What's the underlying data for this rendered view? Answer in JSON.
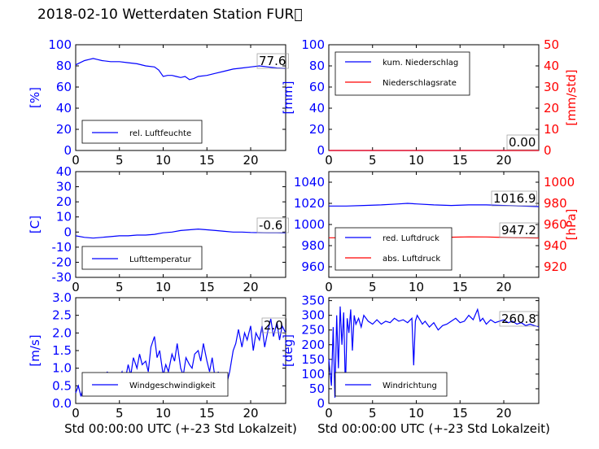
{
  "title": "2018-02-10 Wetterdaten Station FUR\u0000",
  "xlabel": "Std 00:00:00 UTC (+-23 Std Lokalzeit)",
  "colors": {
    "blue": "#0000ff",
    "red": "#ff0000",
    "black": "#000000"
  },
  "chart_data": [
    {
      "type": "line",
      "id": "humidity",
      "ylabel": "[%]",
      "xlim": [
        0,
        24
      ],
      "xticks": [
        0,
        5,
        10,
        15,
        20
      ],
      "ylim": [
        0,
        100
      ],
      "yticks": [
        0,
        20,
        40,
        60,
        80,
        100
      ],
      "value_label": "77.6",
      "legend": [
        "rel. Luftfeuchte"
      ],
      "series": [
        {
          "name": "rel. Luftfeuchte",
          "color": "#0000ff",
          "axis": "left",
          "x": [
            0,
            0.5,
            1,
            1.5,
            2,
            2.5,
            3,
            4,
            5,
            6,
            7,
            8,
            9,
            9.5,
            10,
            10.5,
            11,
            11.5,
            12,
            12.5,
            13,
            13.5,
            14,
            15,
            16,
            17,
            18,
            19,
            20,
            21,
            22,
            23,
            24
          ],
          "y": [
            81,
            83,
            85,
            86,
            87,
            86,
            85,
            84,
            84,
            83,
            82,
            80,
            79,
            76,
            70,
            71,
            71,
            70,
            69,
            70,
            67,
            68,
            70,
            71,
            73,
            75,
            77,
            78,
            79,
            80,
            79,
            78,
            77.6
          ]
        }
      ]
    },
    {
      "type": "line",
      "id": "precipitation",
      "ylabel": "[mm]",
      "ylabel_right": "[mm/std]",
      "xlim": [
        0,
        24
      ],
      "xticks": [
        0,
        5,
        10,
        15,
        20
      ],
      "ylim": [
        0,
        100
      ],
      "yticks": [
        0,
        20,
        40,
        60,
        80,
        100
      ],
      "ylim_right": [
        0,
        50
      ],
      "yticks_right": [
        0,
        10,
        20,
        30,
        40,
        50
      ],
      "value_label": "0.00",
      "legend": [
        "kum. Niederschlag",
        "Niederschlagsrate"
      ],
      "series": [
        {
          "name": "kum. Niederschlag",
          "color": "#0000ff",
          "axis": "left",
          "x": [
            0,
            24
          ],
          "y": [
            0,
            0
          ]
        },
        {
          "name": "Niederschlagsrate",
          "color": "#ff0000",
          "axis": "right",
          "x": [
            0,
            24
          ],
          "y": [
            0,
            0
          ]
        }
      ]
    },
    {
      "type": "line",
      "id": "temperature",
      "ylabel": "[C]",
      "xlim": [
        0,
        24
      ],
      "xticks": [
        0,
        5,
        10,
        15,
        20
      ],
      "ylim": [
        -30,
        40
      ],
      "yticks": [
        -30,
        -20,
        -10,
        0,
        10,
        20,
        30,
        40
      ],
      "value_label": "-0.6",
      "legend": [
        "Lufttemperatur"
      ],
      "series": [
        {
          "name": "Lufttemperatur",
          "color": "#0000ff",
          "axis": "left",
          "x": [
            0,
            1,
            2,
            3,
            4,
            5,
            6,
            7,
            8,
            9,
            10,
            11,
            12,
            13,
            14,
            15,
            16,
            17,
            18,
            19,
            20,
            21,
            22,
            23,
            24
          ],
          "y": [
            -2.5,
            -3.5,
            -4,
            -3.5,
            -3,
            -2.5,
            -2.5,
            -2,
            -2,
            -1.5,
            -0.5,
            0,
            1,
            1.5,
            2,
            1.5,
            1,
            0.5,
            0,
            0,
            -0.3,
            -0.4,
            -0.5,
            -0.5,
            -0.6
          ]
        }
      ]
    },
    {
      "type": "line",
      "id": "pressure",
      "ylabel_right": "[hPa]",
      "xlim": [
        0,
        24
      ],
      "xticks": [
        0,
        5,
        10,
        15,
        20
      ],
      "ylim": [
        950,
        1050
      ],
      "yticks": [
        960,
        980,
        1000,
        1020,
        1040
      ],
      "ylim_right": [
        910,
        1010
      ],
      "yticks_right": [
        920,
        940,
        960,
        980,
        1000
      ],
      "value_label": "1016.9",
      "value_label_2": "947.2",
      "legend": [
        "red. Luftdruck",
        "abs. Luftdruck"
      ],
      "series": [
        {
          "name": "red. Luftdruck",
          "color": "#0000ff",
          "axis": "left",
          "x": [
            0,
            2,
            4,
            6,
            8,
            9,
            10,
            12,
            14,
            16,
            18,
            20,
            22,
            24
          ],
          "y": [
            1017.5,
            1017.5,
            1018,
            1018.5,
            1019.5,
            1020,
            1019.5,
            1018.5,
            1018,
            1018.5,
            1018.5,
            1018,
            1017.5,
            1016.9
          ]
        },
        {
          "name": "abs. Luftdruck",
          "color": "#ff0000",
          "axis": "right",
          "x": [
            0,
            2,
            4,
            6,
            8,
            9,
            10,
            12,
            14,
            16,
            18,
            20,
            22,
            24
          ],
          "y": [
            947.5,
            947.5,
            948,
            948.5,
            949.3,
            949.7,
            949.3,
            948.5,
            948,
            948.3,
            948.2,
            947.8,
            947.5,
            947.2
          ]
        }
      ]
    },
    {
      "type": "line",
      "id": "windspeed",
      "ylabel": "[m/s]",
      "xlim": [
        0,
        24
      ],
      "xticks": [
        0,
        5,
        10,
        15,
        20
      ],
      "ylim": [
        0,
        3
      ],
      "yticks": [
        0.0,
        0.5,
        1.0,
        1.5,
        2.0,
        2.5,
        3.0
      ],
      "value_label": "2.0",
      "legend": [
        "Windgeschwindigkeit"
      ],
      "series": [
        {
          "name": "Windgeschwindigkeit",
          "color": "#0000ff",
          "axis": "left",
          "x": [
            0,
            0.3,
            0.6,
            1,
            1.3,
            1.6,
            2,
            2.3,
            2.6,
            3,
            3.3,
            3.6,
            4,
            4.3,
            4.6,
            5,
            5.3,
            5.6,
            6,
            6.3,
            6.6,
            7,
            7.3,
            7.6,
            8,
            8.3,
            8.6,
            9,
            9.3,
            9.6,
            10,
            10.3,
            10.6,
            11,
            11.3,
            11.6,
            12,
            12.3,
            12.6,
            13,
            13.3,
            13.6,
            14,
            14.3,
            14.6,
            15,
            15.3,
            15.6,
            16,
            16.3,
            16.6,
            17,
            17.3,
            17.6,
            18,
            18.3,
            18.6,
            19,
            19.3,
            19.6,
            20,
            20.3,
            20.6,
            21,
            21.3,
            21.6,
            22,
            22.3,
            22.6,
            23,
            23.3,
            23.6,
            24
          ],
          "y": [
            0.3,
            0.5,
            0.2,
            0.6,
            0.3,
            0.5,
            0.8,
            0.4,
            0.3,
            0.7,
            0.5,
            0.9,
            0.6,
            0.8,
            0.5,
            0.7,
            0.9,
            0.6,
            1.1,
            0.8,
            1.3,
            1.0,
            1.4,
            1.1,
            1.2,
            0.9,
            1.6,
            1.9,
            1.3,
            1.5,
            0.8,
            1.1,
            0.9,
            1.4,
            1.2,
            1.7,
            1.0,
            0.8,
            1.3,
            1.1,
            1.0,
            1.4,
            1.5,
            1.2,
            1.7,
            1.2,
            0.9,
            1.3,
            0.6,
            0.9,
            0.5,
            0.8,
            0.6,
            0.9,
            1.5,
            1.7,
            2.1,
            1.6,
            2.0,
            1.8,
            2.2,
            1.5,
            2.0,
            1.8,
            2.2,
            1.6,
            2.1,
            2.4,
            1.9,
            2.3,
            1.8,
            2.2,
            2.0
          ]
        }
      ]
    },
    {
      "type": "line",
      "id": "winddirection",
      "ylabel": "[deg]",
      "xlim": [
        0,
        24
      ],
      "xticks": [
        0,
        5,
        10,
        15,
        20
      ],
      "ylim": [
        0,
        360
      ],
      "yticks": [
        0,
        50,
        100,
        150,
        200,
        250,
        300,
        350
      ],
      "value_label": "260.8",
      "legend": [
        "Windrichtung"
      ],
      "series": [
        {
          "name": "Windrichtung",
          "color": "#0000ff",
          "axis": "left",
          "x": [
            0,
            0.3,
            0.5,
            0.7,
            0.9,
            1.1,
            1.3,
            1.5,
            1.7,
            1.9,
            2.1,
            2.3,
            2.5,
            2.7,
            2.9,
            3.1,
            3.4,
            3.7,
            4,
            4.5,
            5,
            5.5,
            6,
            6.5,
            7,
            7.5,
            8,
            8.5,
            9,
            9.5,
            9.7,
            9.9,
            10.1,
            10.4,
            10.7,
            11,
            11.5,
            12,
            12.5,
            13,
            13.5,
            14,
            14.5,
            15,
            15.5,
            16,
            16.5,
            17,
            17.3,
            17.6,
            18,
            18.5,
            19,
            19.5,
            20,
            20.5,
            21,
            21.5,
            22,
            22.5,
            23,
            23.5,
            24
          ],
          "y": [
            150,
            60,
            260,
            20,
            300,
            120,
            330,
            200,
            310,
            50,
            290,
            240,
            320,
            180,
            300,
            270,
            290,
            260,
            300,
            280,
            270,
            285,
            270,
            280,
            275,
            290,
            280,
            285,
            275,
            290,
            130,
            280,
            300,
            285,
            270,
            280,
            260,
            275,
            250,
            265,
            270,
            280,
            290,
            275,
            280,
            300,
            285,
            320,
            280,
            290,
            270,
            285,
            275,
            280,
            285,
            275,
            280,
            270,
            275,
            265,
            270,
            265,
            260.8
          ]
        }
      ]
    }
  ]
}
